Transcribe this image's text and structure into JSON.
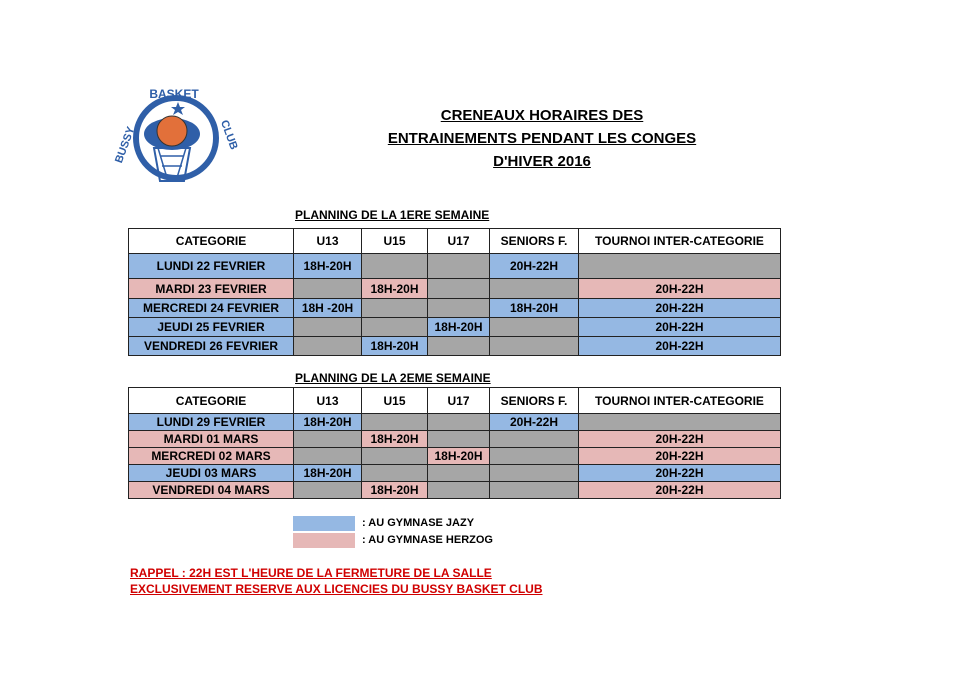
{
  "logo": {
    "top": "BASKET",
    "left": "BUSSY",
    "right": "CLUB"
  },
  "header": {
    "title": [
      "CRENEAUX HORAIRES DES",
      "ENTRAINEMENTS PENDANT LES CONGES",
      "D'HIVER 2016"
    ]
  },
  "tables": [
    {
      "title": "PLANNING DE LA 1ERE SEMAINE",
      "columns": [
        "CATEGORIE",
        "U13",
        "U15",
        "U17",
        "SENIORS F.",
        "TOURNOI INTER-CATEGORIE"
      ],
      "rows": [
        {
          "label": "LUNDI 22 FEVRIER",
          "color": "#95b8e3",
          "cells": [
            "18H-20H",
            null,
            null,
            "20H-22H",
            null
          ]
        },
        {
          "label": "MARDI 23 FEVRIER",
          "color": "#e6b8b7",
          "cells": [
            null,
            "18H-20H",
            null,
            null,
            "20H-22H"
          ]
        },
        {
          "label": "MERCREDI 24 FEVRIER",
          "color": "#95b8e3",
          "cells": [
            "18H -20H",
            null,
            null,
            "18H-20H",
            "20H-22H"
          ]
        },
        {
          "label": "JEUDI 25 FEVRIER",
          "color": "#95b8e3",
          "cells": [
            null,
            null,
            "18H-20H",
            null,
            "20H-22H"
          ]
        },
        {
          "label": "VENDREDI 26 FEVRIER",
          "color": "#95b8e3",
          "cells": [
            null,
            "18H-20H",
            null,
            null,
            "20H-22H"
          ]
        }
      ]
    },
    {
      "title": "PLANNING DE LA 2EME SEMAINE",
      "columns": [
        "CATEGORIE",
        "U13",
        "U15",
        "U17",
        "SENIORS F.",
        "TOURNOI INTER-CATEGORIE"
      ],
      "rows": [
        {
          "label": "LUNDI 29 FEVRIER",
          "color": "#95b8e3",
          "cells": [
            "18H-20H",
            null,
            null,
            "20H-22H",
            null
          ]
        },
        {
          "label": "MARDI 01 MARS",
          "color": "#e6b8b7",
          "cells": [
            null,
            "18H-20H",
            null,
            null,
            "20H-22H"
          ]
        },
        {
          "label": "MERCREDI 02 MARS",
          "color": "#e6b8b7",
          "cells": [
            null,
            null,
            "18H-20H",
            null,
            "20H-22H"
          ]
        },
        {
          "label": "JEUDI 03 MARS",
          "color": "#95b8e3",
          "cells": [
            "18H-20H",
            null,
            null,
            null,
            "20H-22H"
          ]
        },
        {
          "label": "VENDREDI 04 MARS",
          "color": "#e6b8b7",
          "cells": [
            null,
            "18H-20H",
            null,
            null,
            "20H-22H"
          ]
        }
      ]
    }
  ],
  "empty_color": "#a6a6a6",
  "legend": [
    {
      "color": "#95b8e3",
      "label": ": AU GYMNASE JAZY"
    },
    {
      "color": "#e6b8b7",
      "label": ": AU GYMNASE HERZOG"
    }
  ],
  "note": [
    "RAPPEL : 22H EST L'HEURE DE LA FERMETURE DE LA SALLE",
    "EXCLUSIVEMENT RESERVE AUX LICENCIES DU BUSSY BASKET CLUB"
  ]
}
